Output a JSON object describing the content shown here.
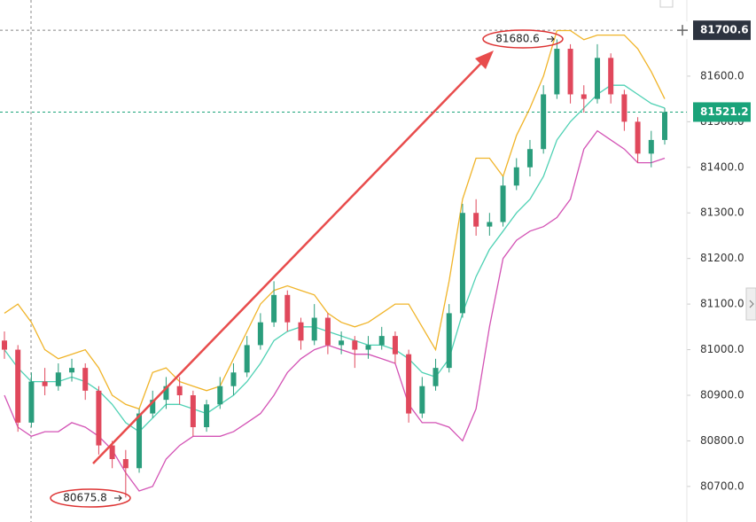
{
  "chart_data": {
    "type": "candlestick",
    "ylim": [
      80622,
      81767
    ],
    "yticks": [
      {
        "value": 80700,
        "label": "80700.0"
      },
      {
        "value": 80800,
        "label": "80800.0"
      },
      {
        "value": 80900,
        "label": "80900.0"
      },
      {
        "value": 81000,
        "label": "81000.0"
      },
      {
        "value": 81100,
        "label": "81100.0"
      },
      {
        "value": 81200,
        "label": "81200.0"
      },
      {
        "value": 81300,
        "label": "81300.0"
      },
      {
        "value": 81400,
        "label": "81400.0"
      },
      {
        "value": 81500,
        "label": "81500.0"
      },
      {
        "value": 81600,
        "label": "81600.0"
      }
    ],
    "up_color": "#2a9d7c",
    "down_color": "#e0485c",
    "candles": [
      [
        81020,
        81040,
        80980,
        81000
      ],
      [
        81000,
        81010,
        80820,
        80840
      ],
      [
        80840,
        80950,
        80830,
        80930
      ],
      [
        80930,
        80960,
        80900,
        80920
      ],
      [
        80920,
        80970,
        80910,
        80950
      ],
      [
        80950,
        80980,
        80930,
        80960
      ],
      [
        80960,
        80970,
        80890,
        80910
      ],
      [
        80910,
        80920,
        80770,
        80790
      ],
      [
        80790,
        80800,
        80740,
        80760
      ],
      [
        80760,
        80780,
        80675.8,
        80740
      ],
      [
        80740,
        80870,
        80730,
        80860
      ],
      [
        80860,
        80910,
        80850,
        80890
      ],
      [
        80890,
        80940,
        80870,
        80920
      ],
      [
        80920,
        80940,
        80880,
        80900
      ],
      [
        80900,
        80910,
        80810,
        80830
      ],
      [
        80830,
        80890,
        80820,
        80880
      ],
      [
        80880,
        80940,
        80870,
        80920
      ],
      [
        80920,
        80970,
        80900,
        80950
      ],
      [
        80950,
        81030,
        80940,
        81010
      ],
      [
        81010,
        81080,
        81000,
        81060
      ],
      [
        81060,
        81150,
        81050,
        81120
      ],
      [
        81120,
        81130,
        81040,
        81060
      ],
      [
        81060,
        81070,
        81000,
        81020
      ],
      [
        81020,
        81100,
        81010,
        81070
      ],
      [
        81070,
        81080,
        80990,
        81010
      ],
      [
        81010,
        81040,
        80990,
        81020
      ],
      [
        81020,
        81030,
        80960,
        81000
      ],
      [
        81000,
        81030,
        80980,
        81010
      ],
      [
        81010,
        81050,
        81000,
        81030
      ],
      [
        81030,
        81040,
        80970,
        80990
      ],
      [
        80990,
        81000,
        80840,
        80860
      ],
      [
        80860,
        80940,
        80850,
        80920
      ],
      [
        80920,
        80980,
        80910,
        80960
      ],
      [
        80960,
        81100,
        80950,
        81080
      ],
      [
        81080,
        81320,
        81070,
        81300
      ],
      [
        81300,
        81330,
        81250,
        81270
      ],
      [
        81270,
        81300,
        81250,
        81280
      ],
      [
        81280,
        81380,
        81270,
        81360
      ],
      [
        81360,
        81420,
        81350,
        81400
      ],
      [
        81400,
        81460,
        81380,
        81440
      ],
      [
        81440,
        81580,
        81430,
        81560
      ],
      [
        81560,
        81680.6,
        81550,
        81660
      ],
      [
        81660,
        81670,
        81540,
        81560
      ],
      [
        81560,
        81580,
        81520,
        81550
      ],
      [
        81550,
        81670,
        81540,
        81640
      ],
      [
        81640,
        81650,
        81540,
        81560
      ],
      [
        81560,
        81570,
        81480,
        81500
      ],
      [
        81500,
        81510,
        81410,
        81430
      ],
      [
        81430,
        81480,
        81400,
        81460
      ],
      [
        81460,
        81530,
        81450,
        81521.2
      ]
    ],
    "bands": [
      {
        "color": "#f0b429",
        "values": [
          81080,
          81100,
          81060,
          81000,
          80980,
          80990,
          81000,
          80960,
          80900,
          80880,
          80870,
          80950,
          80960,
          80930,
          80920,
          80910,
          80920,
          80980,
          81040,
          81100,
          81130,
          81140,
          81130,
          81120,
          81080,
          81060,
          81050,
          81060,
          81080,
          81100,
          81100,
          81050,
          81000,
          81150,
          81330,
          81420,
          81420,
          81380,
          81470,
          81530,
          81600,
          81700,
          81700,
          81680,
          81690,
          81690,
          81690,
          81660,
          81610,
          81550
        ]
      },
      {
        "color": "#4fd1b4",
        "values": [
          81000,
          80960,
          80930,
          80930,
          80930,
          80940,
          80930,
          80910,
          80880,
          80840,
          80820,
          80850,
          80880,
          80880,
          80870,
          80860,
          80880,
          80900,
          80930,
          80970,
          81020,
          81040,
          81050,
          81050,
          81040,
          81030,
          81020,
          81010,
          81010,
          81000,
          80980,
          80950,
          80940,
          80980,
          81080,
          81160,
          81220,
          81260,
          81300,
          81330,
          81380,
          81460,
          81500,
          81530,
          81560,
          81580,
          81580,
          81560,
          81540,
          81530
        ]
      },
      {
        "color": "#d353b5",
        "values": [
          80900,
          80830,
          80810,
          80820,
          80820,
          80840,
          80830,
          80810,
          80780,
          80730,
          80690,
          80700,
          80760,
          80790,
          80810,
          80810,
          80810,
          80820,
          80840,
          80860,
          80900,
          80950,
          80980,
          81000,
          81010,
          81000,
          80990,
          80990,
          80980,
          80970,
          80880,
          80840,
          80840,
          80830,
          80800,
          80870,
          81050,
          81200,
          81240,
          81260,
          81270,
          81290,
          81330,
          81440,
          81480,
          81460,
          81440,
          81410,
          81410,
          81420
        ]
      }
    ],
    "crosshair_price": 81700.6,
    "last_price": 81521.2,
    "high_annotation": 81680.6,
    "low_annotation": 80675.8
  }
}
